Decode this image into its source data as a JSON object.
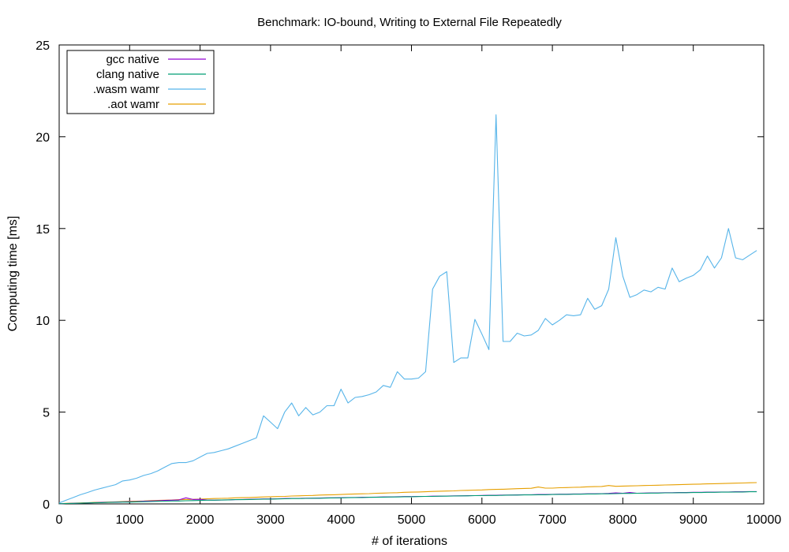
{
  "chart_data": {
    "type": "line",
    "title": "Benchmark: IO-bound, Writing to External File Repeatedly",
    "xlabel": "# of iterations",
    "ylabel": "Computing time [ms]",
    "xlim": [
      0,
      10000
    ],
    "ylim": [
      0,
      25
    ],
    "xticks": [
      0,
      1000,
      2000,
      3000,
      4000,
      5000,
      6000,
      7000,
      8000,
      9000,
      10000
    ],
    "yticks": [
      0,
      5,
      10,
      15,
      20,
      25
    ],
    "grid": false,
    "legend_position": "top-left",
    "series": [
      {
        "name": "gcc native",
        "color": "#9400d3",
        "x": [
          0,
          100,
          200,
          300,
          400,
          500,
          600,
          700,
          800,
          900,
          1000,
          1100,
          1200,
          1300,
          1400,
          1500,
          1600,
          1700,
          1800,
          1900,
          2000,
          2100,
          2200,
          2300,
          2400,
          2500,
          2600,
          2700,
          2800,
          2900,
          3000,
          3100,
          3200,
          3300,
          3400,
          3500,
          3600,
          3700,
          3800,
          3900,
          4000,
          4100,
          4200,
          4300,
          4400,
          4500,
          4600,
          4700,
          4800,
          4900,
          5000,
          5100,
          5200,
          5300,
          5400,
          5500,
          5600,
          5700,
          5800,
          5900,
          6000,
          6100,
          6200,
          6300,
          6400,
          6500,
          6600,
          6700,
          6800,
          6900,
          7000,
          7100,
          7200,
          7300,
          7400,
          7500,
          7600,
          7700,
          7800,
          7900,
          8000,
          8100,
          8200,
          8300,
          8400,
          8500,
          8600,
          8700,
          8800,
          8900,
          9000,
          9100,
          9200,
          9300,
          9400,
          9500,
          9600,
          9700,
          9800,
          9900
        ],
        "values": [
          0.01,
          0.02,
          0.03,
          0.04,
          0.05,
          0.07,
          0.08,
          0.09,
          0.1,
          0.11,
          0.12,
          0.13,
          0.15,
          0.16,
          0.17,
          0.19,
          0.2,
          0.22,
          0.33,
          0.24,
          0.25,
          0.21,
          0.2,
          0.21,
          0.22,
          0.23,
          0.24,
          0.25,
          0.26,
          0.27,
          0.27,
          0.28,
          0.29,
          0.3,
          0.3,
          0.31,
          0.31,
          0.32,
          0.33,
          0.33,
          0.34,
          0.35,
          0.35,
          0.36,
          0.36,
          0.37,
          0.38,
          0.38,
          0.39,
          0.4,
          0.4,
          0.41,
          0.41,
          0.42,
          0.42,
          0.43,
          0.44,
          0.44,
          0.45,
          0.45,
          0.46,
          0.47,
          0.47,
          0.48,
          0.48,
          0.49,
          0.5,
          0.5,
          0.51,
          0.51,
          0.52,
          0.53,
          0.53,
          0.54,
          0.54,
          0.55,
          0.55,
          0.56,
          0.57,
          0.6,
          0.58,
          0.62,
          0.58,
          0.59,
          0.6,
          0.6,
          0.61,
          0.61,
          0.62,
          0.62,
          0.63,
          0.63,
          0.64,
          0.64,
          0.65,
          0.65,
          0.66,
          0.66,
          0.67,
          0.67
        ]
      },
      {
        "name": "clang native",
        "color": "#009e73",
        "x": [
          0,
          100,
          200,
          300,
          400,
          500,
          600,
          700,
          800,
          900,
          1000,
          1100,
          1200,
          1300,
          1400,
          1500,
          1600,
          1700,
          1800,
          1900,
          2000,
          2100,
          2200,
          2300,
          2400,
          2500,
          2600,
          2700,
          2800,
          2900,
          3000,
          3100,
          3200,
          3300,
          3400,
          3500,
          3600,
          3700,
          3800,
          3900,
          4000,
          4100,
          4200,
          4300,
          4400,
          4500,
          4600,
          4700,
          4800,
          4900,
          5000,
          5100,
          5200,
          5300,
          5400,
          5500,
          5600,
          5700,
          5800,
          5900,
          6000,
          6100,
          6200,
          6300,
          6400,
          6500,
          6600,
          6700,
          6800,
          6900,
          7000,
          7100,
          7200,
          7300,
          7400,
          7500,
          7600,
          7700,
          7800,
          7900,
          8000,
          8100,
          8200,
          8300,
          8400,
          8500,
          8600,
          8700,
          8800,
          8900,
          9000,
          9100,
          9200,
          9300,
          9400,
          9500,
          9600,
          9700,
          9800,
          9900
        ],
        "values": [
          0.01,
          0.02,
          0.03,
          0.04,
          0.05,
          0.06,
          0.07,
          0.08,
          0.09,
          0.1,
          0.1,
          0.11,
          0.12,
          0.13,
          0.14,
          0.15,
          0.16,
          0.16,
          0.17,
          0.18,
          0.19,
          0.2,
          0.2,
          0.21,
          0.22,
          0.23,
          0.23,
          0.24,
          0.25,
          0.26,
          0.26,
          0.27,
          0.28,
          0.29,
          0.29,
          0.3,
          0.31,
          0.31,
          0.32,
          0.33,
          0.33,
          0.34,
          0.35,
          0.35,
          0.36,
          0.36,
          0.37,
          0.38,
          0.38,
          0.39,
          0.39,
          0.4,
          0.41,
          0.41,
          0.42,
          0.42,
          0.43,
          0.44,
          0.44,
          0.45,
          0.45,
          0.46,
          0.46,
          0.47,
          0.48,
          0.48,
          0.49,
          0.49,
          0.5,
          0.5,
          0.51,
          0.52,
          0.52,
          0.53,
          0.53,
          0.54,
          0.54,
          0.55,
          0.55,
          0.56,
          0.57,
          0.57,
          0.58,
          0.58,
          0.59,
          0.59,
          0.6,
          0.6,
          0.61,
          0.61,
          0.62,
          0.62,
          0.63,
          0.63,
          0.64,
          0.64,
          0.65,
          0.65,
          0.66,
          0.66
        ]
      },
      {
        "name": ".wasm wamr",
        "color": "#56b4e9",
        "x": [
          0,
          100,
          200,
          300,
          400,
          500,
          600,
          700,
          800,
          900,
          1000,
          1100,
          1200,
          1300,
          1400,
          1500,
          1600,
          1700,
          1800,
          1900,
          2000,
          2100,
          2200,
          2300,
          2400,
          2500,
          2600,
          2700,
          2800,
          2900,
          3000,
          3100,
          3200,
          3300,
          3400,
          3500,
          3600,
          3700,
          3800,
          3900,
          4000,
          4100,
          4200,
          4300,
          4400,
          4500,
          4600,
          4700,
          4800,
          4900,
          5000,
          5100,
          5200,
          5300,
          5400,
          5500,
          5600,
          5700,
          5800,
          5900,
          6000,
          6100,
          6200,
          6300,
          6400,
          6500,
          6600,
          6700,
          6800,
          6900,
          7000,
          7100,
          7200,
          7300,
          7400,
          7500,
          7600,
          7700,
          7800,
          7900,
          8000,
          8100,
          8200,
          8300,
          8400,
          8500,
          8600,
          8700,
          8800,
          8900,
          9000,
          9100,
          9200,
          9300,
          9400,
          9500,
          9600,
          9700,
          9800,
          9900
        ],
        "values": [
          0.05,
          0.2,
          0.35,
          0.5,
          0.62,
          0.75,
          0.85,
          0.95,
          1.05,
          1.25,
          1.3,
          1.4,
          1.55,
          1.65,
          1.8,
          2.0,
          2.2,
          2.25,
          2.25,
          2.35,
          2.55,
          2.75,
          2.8,
          2.9,
          3.0,
          3.15,
          3.3,
          3.45,
          3.6,
          4.8,
          4.45,
          4.1,
          5.0,
          5.5,
          4.8,
          5.25,
          4.85,
          5.0,
          5.35,
          5.35,
          6.25,
          5.5,
          5.8,
          5.85,
          5.95,
          6.1,
          6.45,
          6.35,
          7.2,
          6.8,
          6.8,
          6.85,
          7.2,
          11.7,
          12.4,
          12.65,
          7.7,
          7.95,
          7.95,
          10.05,
          9.25,
          8.4,
          21.2,
          8.85,
          8.85,
          9.3,
          9.15,
          9.2,
          9.45,
          10.1,
          9.75,
          10.0,
          10.3,
          10.25,
          10.3,
          11.2,
          10.6,
          10.8,
          11.7,
          14.5,
          12.4,
          11.25,
          11.4,
          11.65,
          11.55,
          11.8,
          11.7,
          12.85,
          12.1,
          12.3,
          12.45,
          12.75,
          13.5,
          12.85,
          13.4,
          15.0,
          13.4,
          13.3,
          13.55,
          13.8
        ]
      },
      {
        "name": ".aot wamr",
        "color": "#e69f00",
        "x": [
          0,
          100,
          200,
          300,
          400,
          500,
          600,
          700,
          800,
          900,
          1000,
          1100,
          1200,
          1300,
          1400,
          1500,
          1600,
          1700,
          1800,
          1900,
          2000,
          2100,
          2200,
          2300,
          2400,
          2500,
          2600,
          2700,
          2800,
          2900,
          3000,
          3100,
          3200,
          3300,
          3400,
          3500,
          3600,
          3700,
          3800,
          3900,
          4000,
          4100,
          4200,
          4300,
          4400,
          4500,
          4600,
          4700,
          4800,
          4900,
          5000,
          5100,
          5200,
          5300,
          5400,
          5500,
          5600,
          5700,
          5800,
          5900,
          6000,
          6100,
          6200,
          6300,
          6400,
          6500,
          6600,
          6700,
          6800,
          6900,
          7000,
          7100,
          7200,
          7300,
          7400,
          7500,
          7600,
          7700,
          7800,
          7900,
          8000,
          8100,
          8200,
          8300,
          8400,
          8500,
          8600,
          8700,
          8800,
          8900,
          9000,
          9100,
          9200,
          9300,
          9400,
          9500,
          9600,
          9700,
          9800,
          9900
        ],
        "values": [
          0.01,
          0.03,
          0.04,
          0.05,
          0.06,
          0.08,
          0.09,
          0.1,
          0.11,
          0.13,
          0.14,
          0.15,
          0.16,
          0.18,
          0.19,
          0.2,
          0.21,
          0.23,
          0.24,
          0.25,
          0.26,
          0.28,
          0.29,
          0.3,
          0.31,
          0.33,
          0.34,
          0.35,
          0.36,
          0.38,
          0.39,
          0.4,
          0.41,
          0.43,
          0.44,
          0.45,
          0.46,
          0.48,
          0.49,
          0.5,
          0.51,
          0.53,
          0.54,
          0.55,
          0.56,
          0.58,
          0.59,
          0.6,
          0.61,
          0.63,
          0.64,
          0.65,
          0.66,
          0.68,
          0.69,
          0.7,
          0.71,
          0.73,
          0.74,
          0.75,
          0.76,
          0.78,
          0.79,
          0.8,
          0.81,
          0.83,
          0.84,
          0.85,
          0.92,
          0.86,
          0.86,
          0.88,
          0.89,
          0.9,
          0.91,
          0.93,
          0.94,
          0.95,
          1.0,
          0.96,
          0.97,
          0.98,
          0.99,
          1.0,
          1.01,
          1.02,
          1.03,
          1.04,
          1.05,
          1.06,
          1.07,
          1.08,
          1.09,
          1.1,
          1.11,
          1.12,
          1.13,
          1.14,
          1.15,
          1.16
        ]
      }
    ]
  }
}
